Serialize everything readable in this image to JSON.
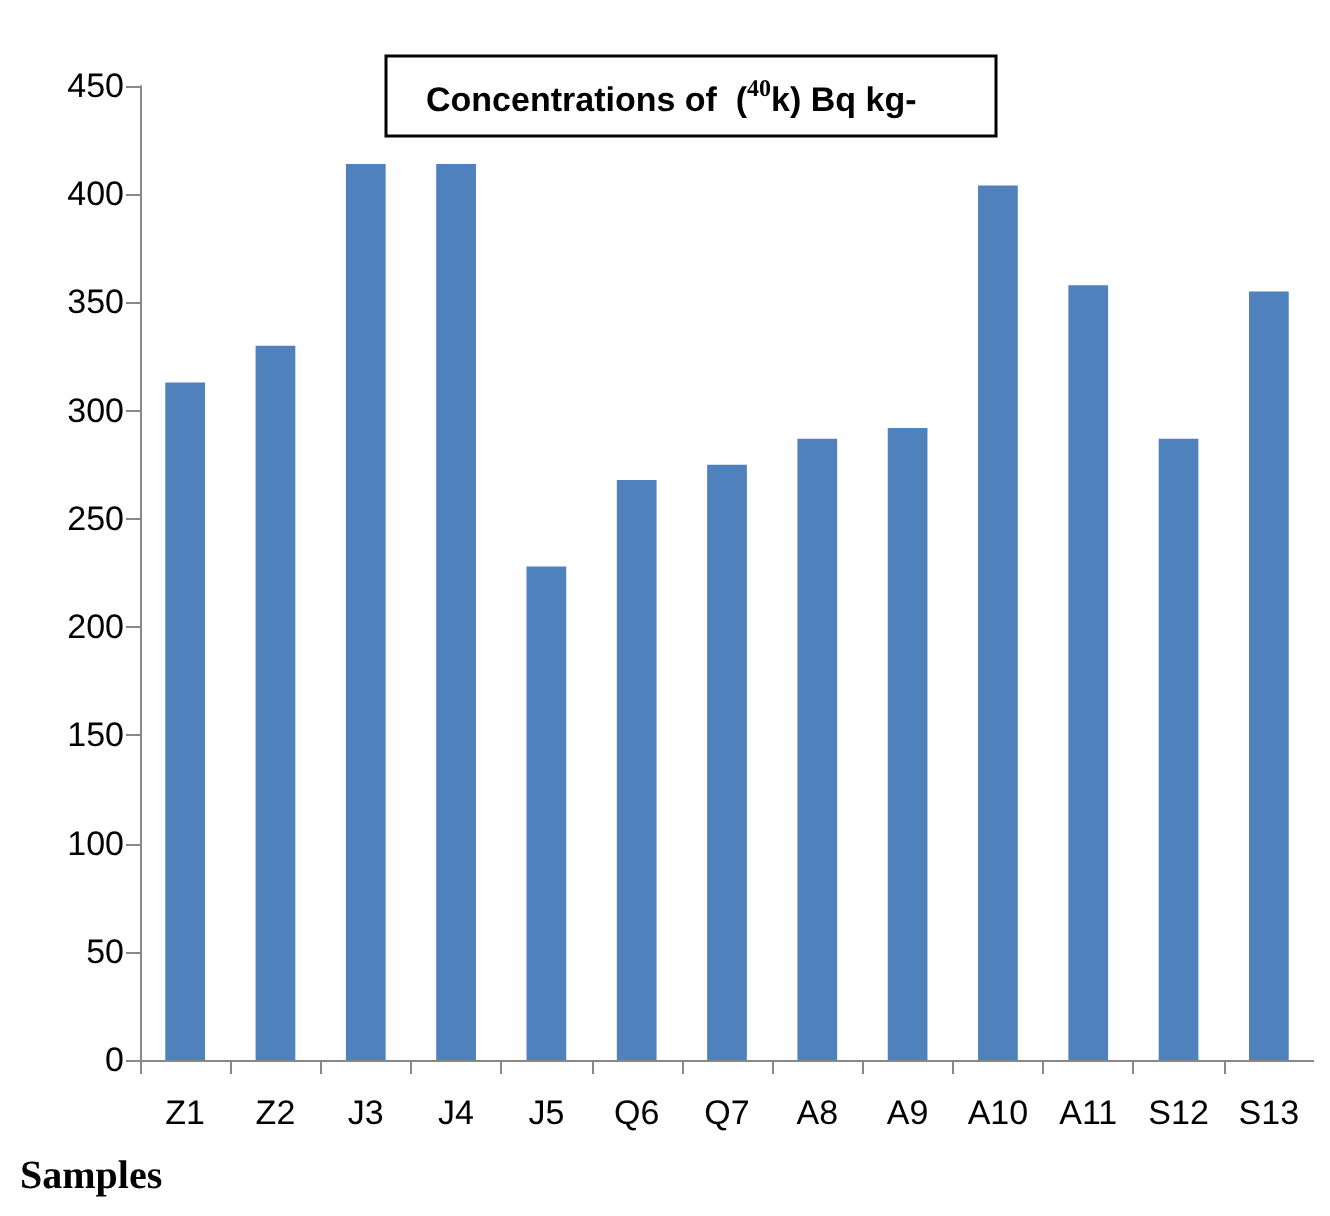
{
  "chart_data": {
    "type": "bar",
    "title": "Concentrations of  ($^{40}$k) Bq kg-",
    "xlabel": "Samples",
    "categories": [
      "Z1",
      "Z2",
      "J3",
      "J4",
      "J5",
      "Q6",
      "Q7",
      "A8",
      "A9",
      "A10",
      "A11",
      "S12",
      "S13"
    ],
    "values": [
      313,
      330,
      414,
      414,
      228,
      268,
      275,
      287,
      292,
      404,
      358,
      287,
      355
    ],
    "color": "#4f81bd",
    "ylim": [
      0,
      450
    ],
    "yticks": [
      0,
      50,
      100,
      150,
      200,
      250,
      300,
      350,
      400,
      450
    ],
    "grid": false
  }
}
